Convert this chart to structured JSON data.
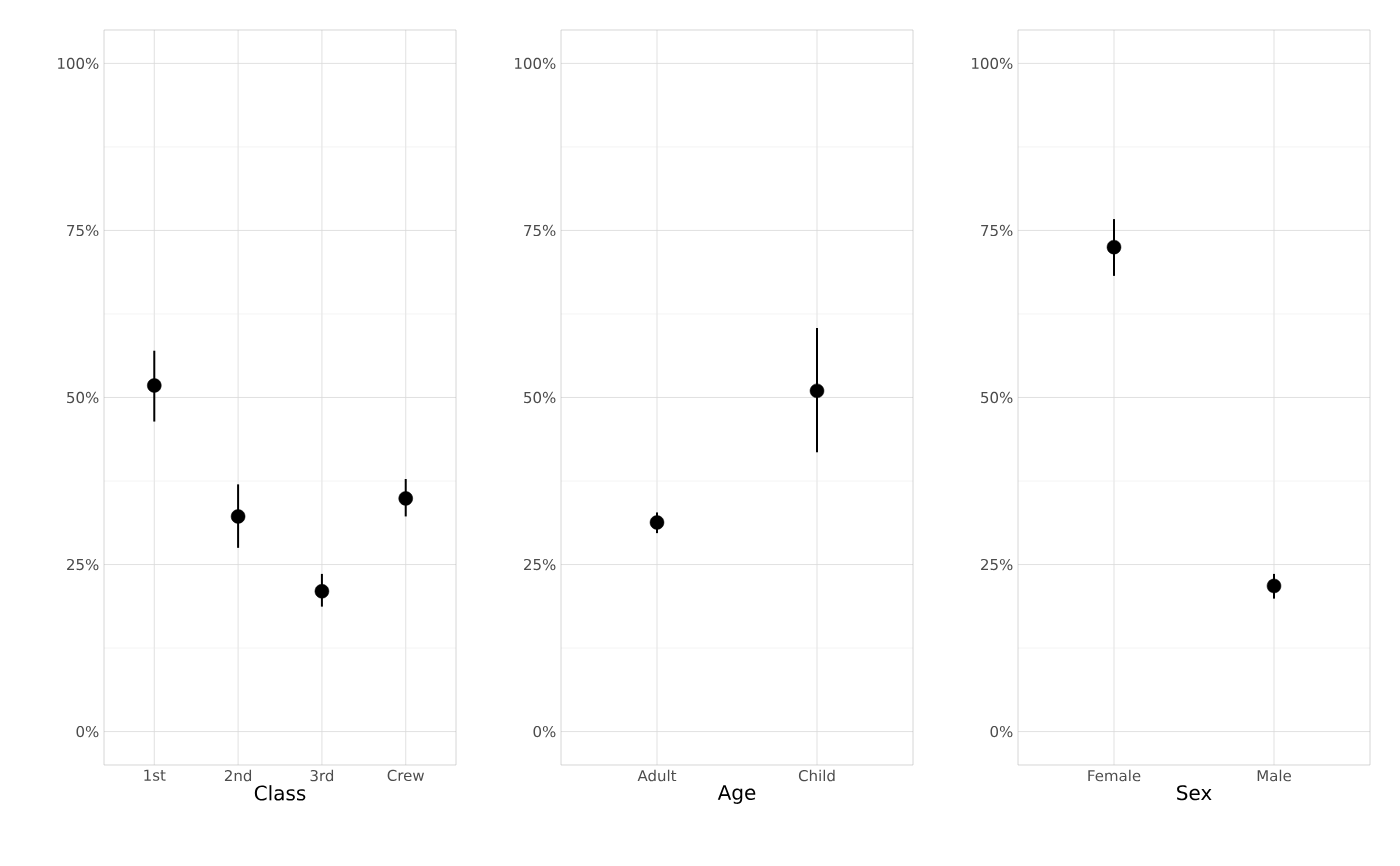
{
  "chart_data": [
    {
      "type": "scatter",
      "xlabel": "Class",
      "categories": [
        "1st",
        "2nd",
        "3rd",
        "Crew"
      ],
      "values": [
        51.8,
        32.2,
        21.0,
        34.9
      ],
      "errors": [
        [
          46.4,
          57.0
        ],
        [
          27.5,
          37.0
        ],
        [
          18.7,
          23.6
        ],
        [
          32.2,
          37.8
        ]
      ],
      "color": "#000000",
      "marker": "circle",
      "grid": true,
      "ylim": [
        -5,
        105
      ],
      "yticks": [
        {
          "value": 0,
          "label": "0%"
        },
        {
          "value": 12.5,
          "label": null
        },
        {
          "value": 25,
          "label": "25%"
        },
        {
          "value": 37.5,
          "label": null
        },
        {
          "value": 50,
          "label": "50%"
        },
        {
          "value": 62.5,
          "label": null
        },
        {
          "value": 75,
          "label": "75%"
        },
        {
          "value": 87.5,
          "label": null
        },
        {
          "value": 100,
          "label": "100%"
        }
      ]
    },
    {
      "type": "scatter",
      "xlabel": "Age",
      "categories": [
        "Adult",
        "Child"
      ],
      "values": [
        31.3,
        51.0
      ],
      "errors": [
        [
          29.7,
          32.8
        ],
        [
          41.8,
          60.4
        ]
      ],
      "color": "#000000",
      "marker": "circle",
      "grid": true,
      "ylim": [
        -5,
        105
      ],
      "yticks": [
        {
          "value": 0,
          "label": "0%"
        },
        {
          "value": 12.5,
          "label": null
        },
        {
          "value": 25,
          "label": "25%"
        },
        {
          "value": 37.5,
          "label": null
        },
        {
          "value": 50,
          "label": "50%"
        },
        {
          "value": 62.5,
          "label": null
        },
        {
          "value": 75,
          "label": "75%"
        },
        {
          "value": 87.5,
          "label": null
        },
        {
          "value": 100,
          "label": "100%"
        }
      ]
    },
    {
      "type": "scatter",
      "xlabel": "Sex",
      "categories": [
        "Female",
        "Male"
      ],
      "values": [
        72.5,
        21.8
      ],
      "errors": [
        [
          68.2,
          76.7
        ],
        [
          19.9,
          23.6
        ]
      ],
      "color": "#000000",
      "marker": "circle",
      "grid": true,
      "ylim": [
        -5,
        105
      ],
      "yticks": [
        {
          "value": 0,
          "label": "0%"
        },
        {
          "value": 12.5,
          "label": null
        },
        {
          "value": 25,
          "label": "25%"
        },
        {
          "value": 37.5,
          "label": null
        },
        {
          "value": 50,
          "label": "50%"
        },
        {
          "value": 62.5,
          "label": null
        },
        {
          "value": 75,
          "label": "75%"
        },
        {
          "value": 87.5,
          "label": null
        },
        {
          "value": 100,
          "label": "100%"
        }
      ]
    }
  ]
}
